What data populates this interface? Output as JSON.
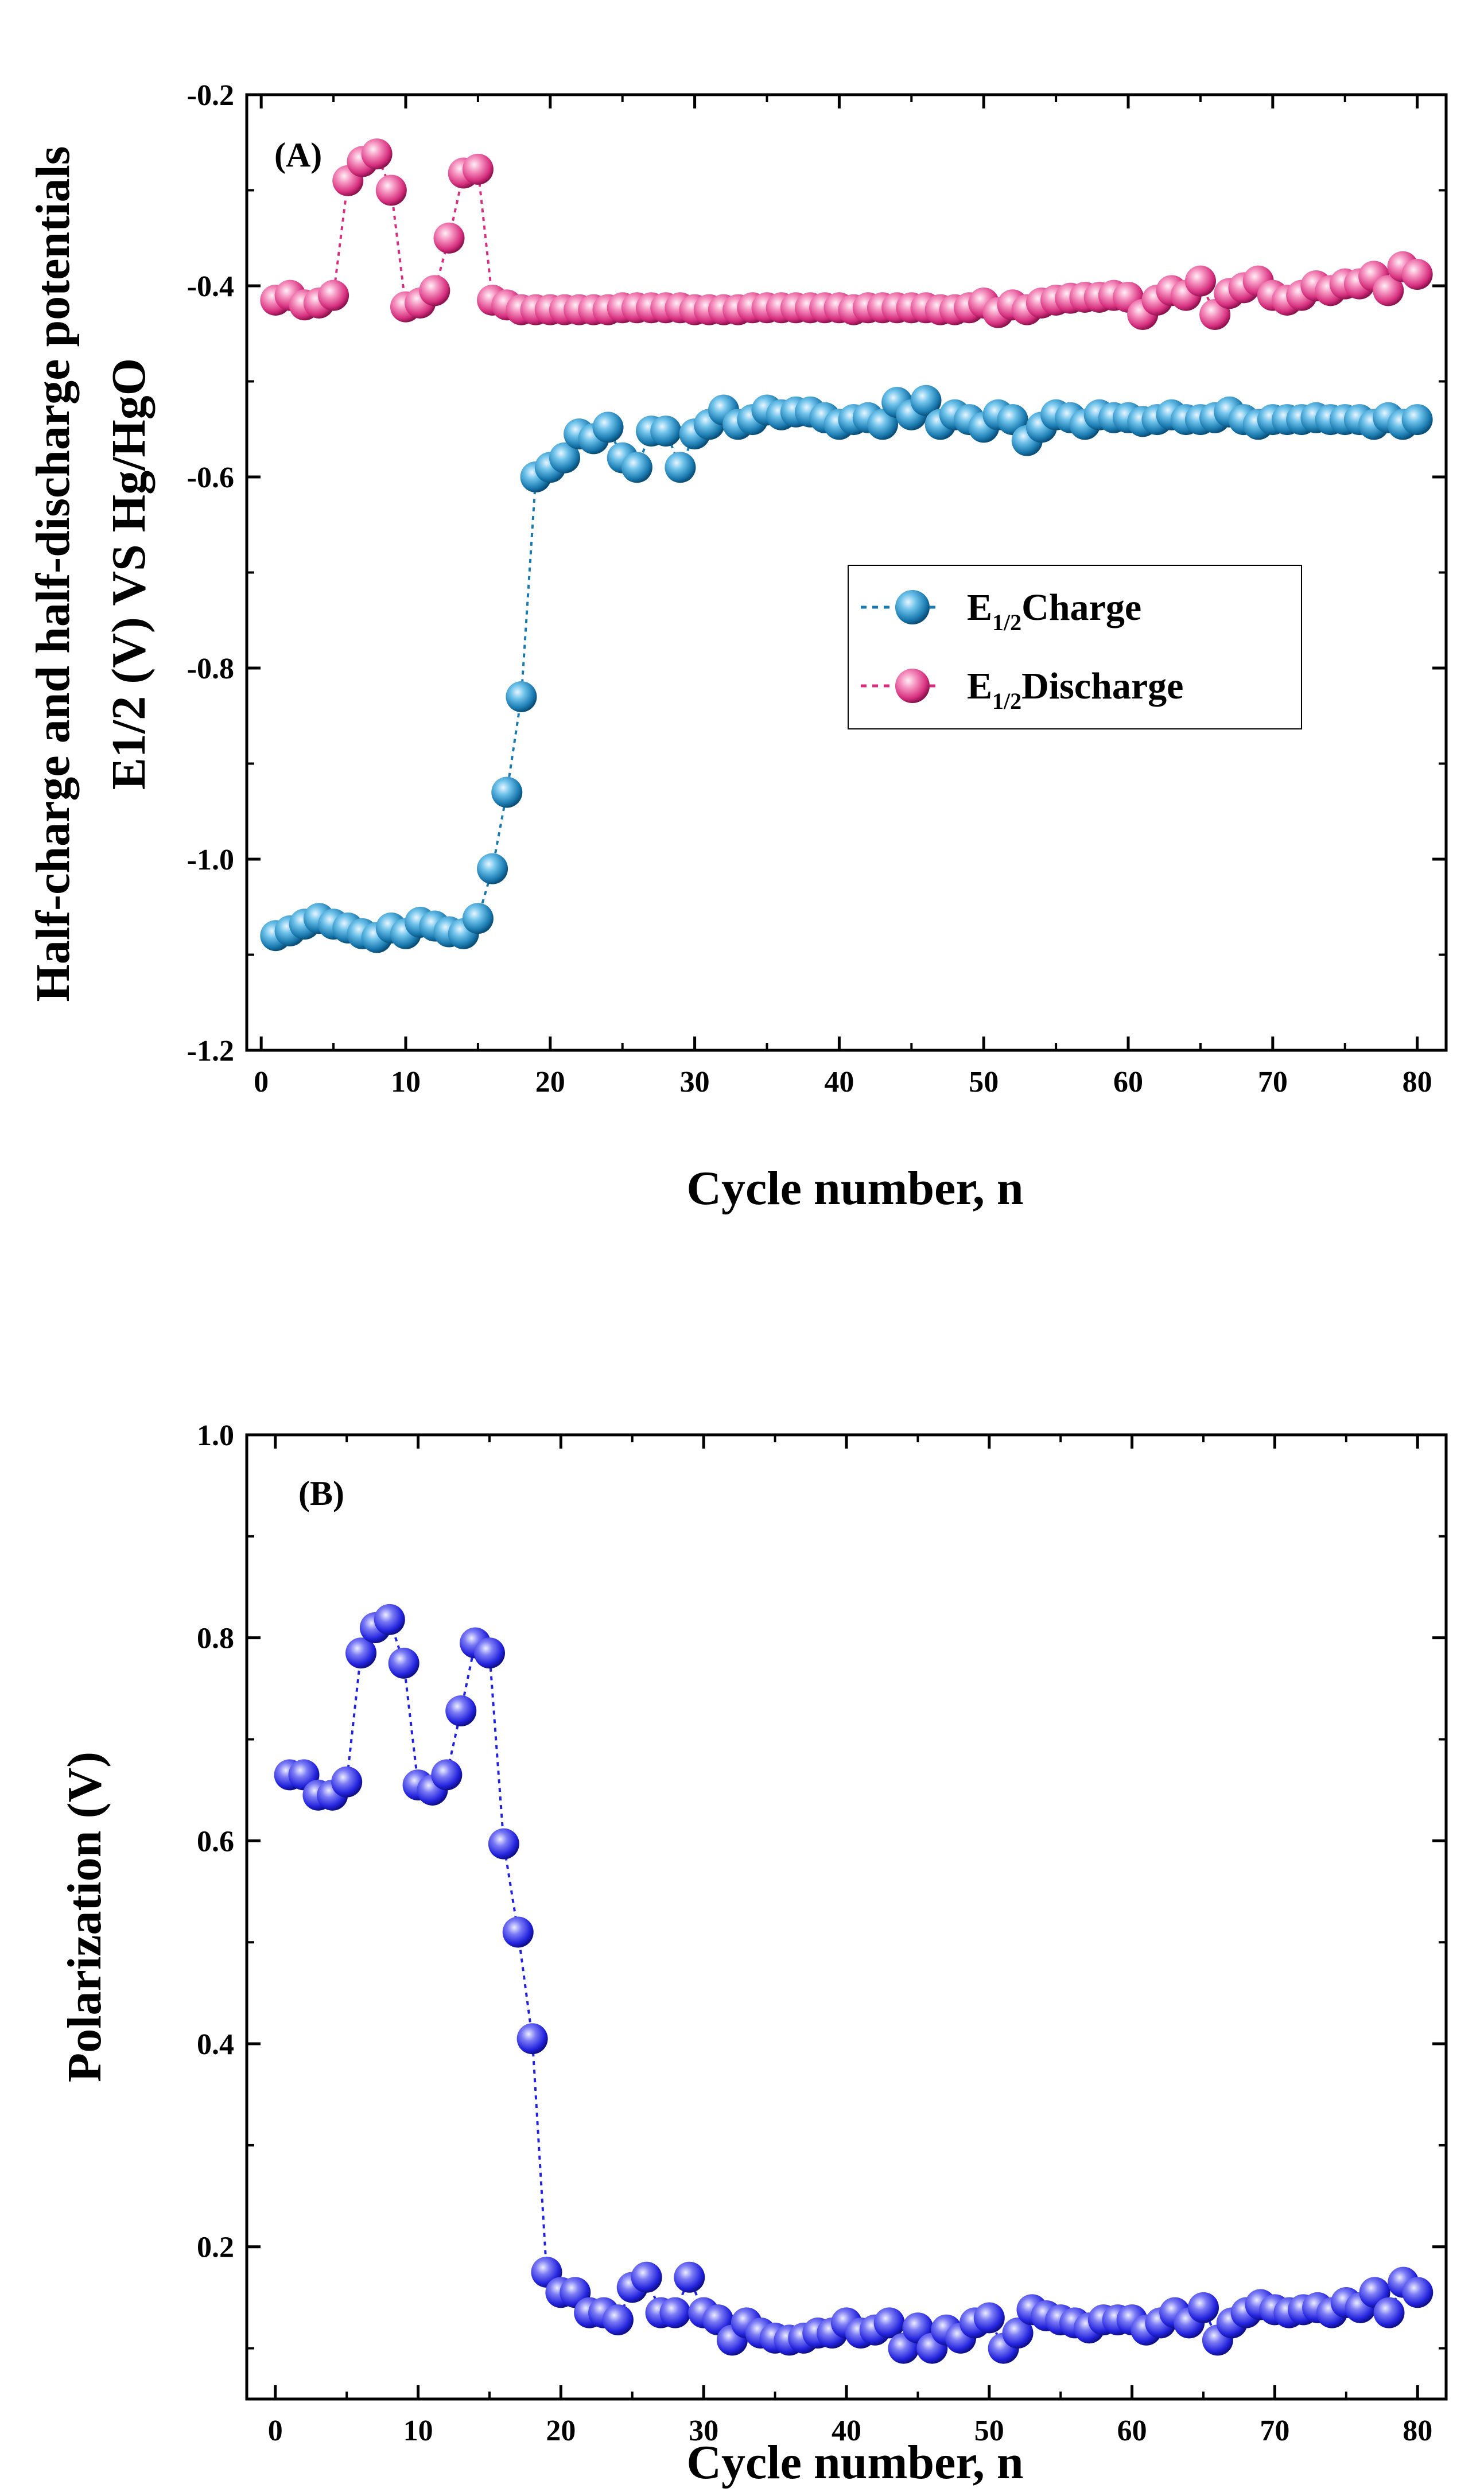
{
  "chart_data": [
    {
      "id": "A",
      "type": "scatter",
      "panel_label": "(A)",
      "xlabel": "Cycle number, n",
      "ylabel_lines": [
        "Half-charge and half-discharge potentials",
        "E1/2 (V)  VS Hg/HgO"
      ],
      "xlim": [
        -1,
        82
      ],
      "ylim": [
        -1.2,
        -0.2
      ],
      "xticks": [
        0,
        10,
        20,
        30,
        40,
        50,
        60,
        70,
        80
      ],
      "yticks": [
        -0.2,
        -0.4,
        -0.6,
        -0.8,
        -1.0,
        -1.2
      ],
      "ytick_labels": [
        "-0.2",
        "-0.4",
        "-0.6",
        "-0.8",
        "-1.0",
        "-1.2"
      ],
      "legend": {
        "placement": "center-right"
      },
      "series": [
        {
          "name": "E1/2Charge",
          "legend_main": "E",
          "legend_sub": "1/2",
          "legend_rest": "Charge",
          "color": "#1a7ab0",
          "x": [
            1,
            2,
            3,
            4,
            5,
            6,
            7,
            8,
            9,
            10,
            11,
            12,
            13,
            14,
            15,
            16,
            17,
            18,
            19,
            20,
            21,
            22,
            23,
            24,
            25,
            26,
            27,
            28,
            29,
            30,
            31,
            32,
            33,
            34,
            35,
            36,
            37,
            38,
            39,
            40,
            41,
            42,
            43,
            44,
            45,
            46,
            47,
            48,
            49,
            50,
            51,
            52,
            53,
            54,
            55,
            56,
            57,
            58,
            59,
            60,
            61,
            62,
            63,
            64,
            65,
            66,
            67,
            68,
            69,
            70,
            71,
            72,
            73,
            74,
            75,
            76,
            77,
            78,
            79,
            80
          ],
          "values": [
            -1.08,
            -1.075,
            -1.068,
            -1.062,
            -1.068,
            -1.072,
            -1.078,
            -1.082,
            -1.072,
            -1.078,
            -1.066,
            -1.07,
            -1.076,
            -1.078,
            -1.062,
            -1.01,
            -0.93,
            -0.83,
            -0.6,
            -0.59,
            -0.58,
            -0.555,
            -0.56,
            -0.548,
            -0.58,
            -0.59,
            -0.552,
            -0.552,
            -0.59,
            -0.555,
            -0.545,
            -0.53,
            -0.545,
            -0.54,
            -0.53,
            -0.535,
            -0.532,
            -0.532,
            -0.538,
            -0.545,
            -0.54,
            -0.538,
            -0.545,
            -0.522,
            -0.535,
            -0.52,
            -0.545,
            -0.535,
            -0.54,
            -0.548,
            -0.535,
            -0.54,
            -0.562,
            -0.548,
            -0.535,
            -0.538,
            -0.545,
            -0.535,
            -0.538,
            -0.538,
            -0.542,
            -0.54,
            -0.535,
            -0.54,
            -0.54,
            -0.538,
            -0.532,
            -0.54,
            -0.545,
            -0.54,
            -0.54,
            -0.54,
            -0.538,
            -0.54,
            -0.54,
            -0.54,
            -0.545,
            -0.538,
            -0.545,
            -0.54
          ]
        },
        {
          "name": "E1/2Discharge",
          "legend_main": "E",
          "legend_sub": "1/2",
          "legend_rest": "Discharge",
          "color": "#d62f7e",
          "x": [
            1,
            2,
            3,
            4,
            5,
            6,
            7,
            8,
            9,
            10,
            11,
            12,
            13,
            14,
            15,
            16,
            17,
            18,
            19,
            20,
            21,
            22,
            23,
            24,
            25,
            26,
            27,
            28,
            29,
            30,
            31,
            32,
            33,
            34,
            35,
            36,
            37,
            38,
            39,
            40,
            41,
            42,
            43,
            44,
            45,
            46,
            47,
            48,
            49,
            50,
            51,
            52,
            53,
            54,
            55,
            56,
            57,
            58,
            59,
            60,
            61,
            62,
            63,
            64,
            65,
            66,
            67,
            68,
            69,
            70,
            71,
            72,
            73,
            74,
            75,
            76,
            77,
            78,
            79,
            80
          ],
          "values": [
            -0.415,
            -0.41,
            -0.42,
            -0.418,
            -0.41,
            -0.29,
            -0.27,
            -0.262,
            -0.3,
            -0.422,
            -0.418,
            -0.405,
            -0.35,
            -0.282,
            -0.278,
            -0.415,
            -0.42,
            -0.425,
            -0.425,
            -0.425,
            -0.425,
            -0.425,
            -0.425,
            -0.425,
            -0.423,
            -0.423,
            -0.423,
            -0.423,
            -0.423,
            -0.425,
            -0.425,
            -0.425,
            -0.425,
            -0.423,
            -0.423,
            -0.423,
            -0.423,
            -0.423,
            -0.423,
            -0.423,
            -0.425,
            -0.423,
            -0.423,
            -0.423,
            -0.423,
            -0.423,
            -0.425,
            -0.425,
            -0.423,
            -0.418,
            -0.428,
            -0.42,
            -0.425,
            -0.418,
            -0.415,
            -0.413,
            -0.412,
            -0.412,
            -0.41,
            -0.412,
            -0.43,
            -0.415,
            -0.405,
            -0.41,
            -0.395,
            -0.43,
            -0.408,
            -0.402,
            -0.395,
            -0.41,
            -0.415,
            -0.41,
            -0.4,
            -0.405,
            -0.398,
            -0.398,
            -0.39,
            -0.405,
            -0.38,
            -0.388
          ]
        }
      ]
    },
    {
      "id": "B",
      "type": "scatter",
      "panel_label": "(B)",
      "xlabel": "Cycle number, n",
      "ylabel": "Polarization (V)",
      "xlim": [
        -2,
        82
      ],
      "ylim": [
        0.05,
        1.0
      ],
      "xticks": [
        0,
        10,
        20,
        30,
        40,
        50,
        60,
        70,
        80
      ],
      "yticks": [
        0.2,
        0.4,
        0.6,
        0.8,
        1.0
      ],
      "ytick_labels": [
        "0.2",
        "0.4",
        "0.6",
        "0.8",
        "1.0"
      ],
      "series": [
        {
          "name": "Polarization",
          "color": "#2222dd",
          "x": [
            1,
            2,
            3,
            4,
            5,
            6,
            7,
            8,
            9,
            10,
            11,
            12,
            13,
            14,
            15,
            16,
            17,
            18,
            19,
            20,
            21,
            22,
            23,
            24,
            25,
            26,
            27,
            28,
            29,
            30,
            31,
            32,
            33,
            34,
            35,
            36,
            37,
            38,
            39,
            40,
            41,
            42,
            43,
            44,
            45,
            46,
            47,
            48,
            49,
            50,
            51,
            52,
            53,
            54,
            55,
            56,
            57,
            58,
            59,
            60,
            61,
            62,
            63,
            64,
            65,
            66,
            67,
            68,
            69,
            70,
            71,
            72,
            73,
            74,
            75,
            76,
            77,
            78,
            79,
            80
          ],
          "values": [
            0.665,
            0.665,
            0.645,
            0.645,
            0.658,
            0.785,
            0.81,
            0.818,
            0.775,
            0.655,
            0.65,
            0.665,
            0.728,
            0.795,
            0.785,
            0.597,
            0.51,
            0.405,
            0.175,
            0.155,
            0.155,
            0.135,
            0.135,
            0.128,
            0.16,
            0.17,
            0.135,
            0.135,
            0.17,
            0.135,
            0.128,
            0.108,
            0.125,
            0.115,
            0.11,
            0.108,
            0.11,
            0.115,
            0.115,
            0.125,
            0.115,
            0.118,
            0.125,
            0.1,
            0.12,
            0.1,
            0.118,
            0.11,
            0.125,
            0.13,
            0.1,
            0.115,
            0.138,
            0.132,
            0.128,
            0.125,
            0.12,
            0.128,
            0.128,
            0.128,
            0.118,
            0.125,
            0.135,
            0.125,
            0.14,
            0.108,
            0.125,
            0.135,
            0.143,
            0.138,
            0.135,
            0.138,
            0.14,
            0.135,
            0.145,
            0.14,
            0.155,
            0.135,
            0.165,
            0.155
          ]
        }
      ]
    }
  ]
}
